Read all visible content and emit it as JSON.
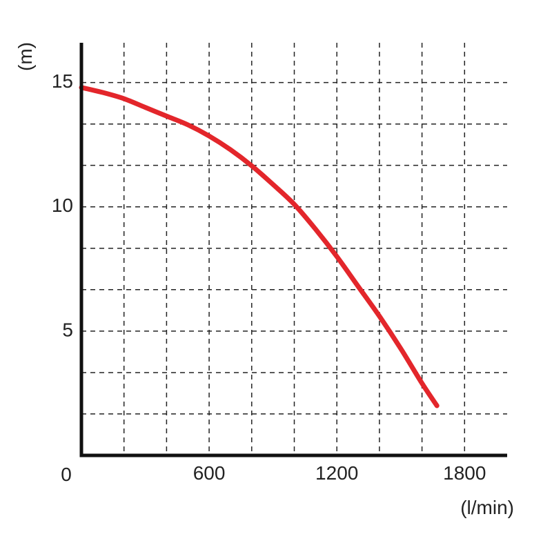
{
  "chart_data": {
    "type": "line",
    "title": "",
    "xlabel": "(l/min)",
    "ylabel": "(m)",
    "origin_label": "0",
    "xlim": [
      0,
      2000
    ],
    "ylim": [
      0,
      16.6
    ],
    "x_ticks": [
      {
        "value": 600,
        "label": "600"
      },
      {
        "value": 1200,
        "label": "1200"
      },
      {
        "value": 1800,
        "label": "1800"
      }
    ],
    "y_ticks": [
      {
        "value": 5,
        "label": "5"
      },
      {
        "value": 10,
        "label": "10"
      },
      {
        "value": 15,
        "label": "15"
      }
    ],
    "x_grid": [
      200,
      400,
      600,
      800,
      1000,
      1200,
      1400,
      1600,
      1800
    ],
    "y_grid": [
      1.67,
      3.33,
      5,
      6.67,
      8.33,
      10,
      11.67,
      13.33,
      15
    ],
    "grid": true,
    "series": [
      {
        "color": "#e3262b",
        "x": [
          0,
          100,
          200,
          300,
          400,
          500,
          600,
          700,
          800,
          900,
          1000,
          1100,
          1200,
          1300,
          1400,
          1500,
          1600,
          1670
        ],
        "y": [
          14.8,
          14.6,
          14.35,
          14.0,
          13.65,
          13.3,
          12.85,
          12.3,
          11.65,
          10.9,
          10.1,
          9.1,
          8.0,
          6.8,
          5.6,
          4.3,
          2.9,
          2.0
        ]
      }
    ]
  }
}
